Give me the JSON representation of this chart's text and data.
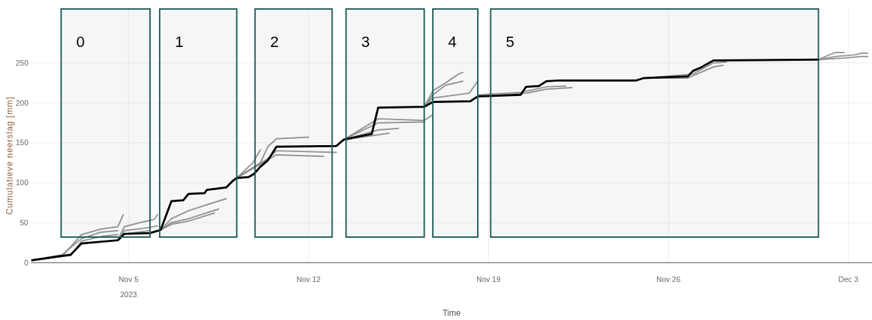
{
  "chart_data": {
    "type": "line",
    "xlabel": "Time",
    "ylabel": "Cumulatieve neerslag [mm]",
    "xlim": [
      "2023-11-01T05:00",
      "2023-12-03T22:00"
    ],
    "ylim": [
      0,
      320
    ],
    "xticks": [
      {
        "value": "2023-11-05",
        "label": "Nov 5\n2023"
      },
      {
        "value": "2023-11-12",
        "label": "Nov 12"
      },
      {
        "value": "2023-11-19",
        "label": "Nov 19"
      },
      {
        "value": "2023-11-26",
        "label": "Nov 26"
      },
      {
        "value": "2023-12-03",
        "label": "Dec 3"
      }
    ],
    "yticks": [
      0,
      50,
      100,
      150,
      200,
      250
    ],
    "grid": true,
    "bands": [
      {
        "axis": "x",
        "from": "2023-11-02T09:00",
        "to": "2023-11-05T20:00",
        "label": "0",
        "color": "#1f5a57"
      },
      {
        "axis": "x",
        "from": "2023-11-06T05:00",
        "to": "2023-11-09T05:00",
        "label": "1",
        "color": "#1f5a57"
      },
      {
        "axis": "x",
        "from": "2023-11-09T22:00",
        "to": "2023-11-12T22:00",
        "label": "2",
        "color": "#1f5a57"
      },
      {
        "axis": "x",
        "from": "2023-11-13T11:00",
        "to": "2023-11-16T12:00",
        "label": "3",
        "color": "#1f5a57"
      },
      {
        "axis": "x",
        "from": "2023-11-16T20:00",
        "to": "2023-11-18T14:00",
        "label": "4",
        "color": "#1f5a57"
      },
      {
        "axis": "x",
        "from": "2023-11-19T02:00",
        "to": "2023-12-01T20:00",
        "label": "5",
        "color": "#1f5a57"
      }
    ],
    "series": [
      {
        "color": "#8c8c8c",
        "x": [
          "2023-11-01T06:00",
          "2023-11-02T10:00",
          "2023-11-03T04:00",
          "2023-11-03T22:00",
          "2023-11-04T14:00",
          "2023-11-04T19:00"
        ],
        "values": [
          3,
          8,
          35,
          42,
          45,
          60
        ]
      },
      {
        "color": "#8c8c8c",
        "x": [
          "2023-11-01T06:00",
          "2023-11-02T10:00",
          "2023-11-03T04:00",
          "2023-11-03T22:00",
          "2023-11-04T14:00"
        ],
        "values": [
          3,
          10,
          30,
          38,
          40
        ]
      },
      {
        "color": "#8c8c8c",
        "x": [
          "2023-11-01T06:00",
          "2023-11-02T18:00",
          "2023-11-03T04:00",
          "2023-11-04T00:00",
          "2023-11-04T14:00"
        ],
        "values": [
          3,
          9,
          27,
          33,
          35
        ]
      },
      {
        "color": "#8c8c8c",
        "x": [
          "2023-11-04T14:00",
          "2023-11-04T20:00",
          "2023-11-05T10:00",
          "2023-11-06T00:00",
          "2023-11-06T03:00"
        ],
        "values": [
          28,
          45,
          50,
          54,
          60
        ]
      },
      {
        "color": "#8c8c8c",
        "x": [
          "2023-11-04T14:00",
          "2023-11-04T20:00",
          "2023-11-05T20:00",
          "2023-11-06T03:00"
        ],
        "values": [
          28,
          40,
          44,
          46
        ]
      },
      {
        "color": "#8c8c8c",
        "x": [
          "2023-11-04T14:00",
          "2023-11-04T20:00",
          "2023-11-05T20:00"
        ],
        "values": [
          28,
          36,
          40
        ]
      },
      {
        "color": "#8c8c8c",
        "x": [
          "2023-11-06T06:00",
          "2023-11-06T16:00",
          "2023-11-07T08:00",
          "2023-11-08T00:00",
          "2023-11-08T19:00"
        ],
        "values": [
          41,
          55,
          65,
          72,
          80
        ]
      },
      {
        "color": "#8c8c8c",
        "x": [
          "2023-11-06T06:00",
          "2023-11-06T16:00",
          "2023-11-07T08:00",
          "2023-11-08T12:00"
        ],
        "values": [
          41,
          50,
          55,
          67
        ]
      },
      {
        "color": "#8c8c8c",
        "x": [
          "2023-11-06T06:00",
          "2023-11-06T16:00",
          "2023-11-07T08:00",
          "2023-11-08T08:00"
        ],
        "values": [
          41,
          48,
          52,
          62
        ]
      },
      {
        "color": "#8c8c8c",
        "x": [
          "2023-11-09T05:00",
          "2023-11-09T20:00",
          "2023-11-10T03:00"
        ],
        "values": [
          106,
          125,
          141
        ]
      },
      {
        "color": "#8c8c8c",
        "x": [
          "2023-11-09T05:00",
          "2023-11-10T03:00",
          "2023-11-10T10:00",
          "2023-11-10T18:00",
          "2023-11-12T00:00"
        ],
        "values": [
          106,
          125,
          145,
          155,
          157
        ]
      },
      {
        "color": "#8c8c8c",
        "x": [
          "2023-11-09T05:00",
          "2023-11-10T10:00",
          "2023-11-10T18:00",
          "2023-11-13T02:00"
        ],
        "values": [
          106,
          130,
          140,
          138
        ]
      },
      {
        "color": "#8c8c8c",
        "x": [
          "2023-11-09T05:00",
          "2023-11-10T18:00",
          "2023-11-12T14:00"
        ],
        "values": [
          106,
          135,
          133
        ]
      },
      {
        "color": "#8c8c8c",
        "x": [
          "2023-11-13T09:00",
          "2023-11-14T17:00",
          "2023-11-16T12:00",
          "2023-11-16T20:00"
        ],
        "values": [
          154,
          180,
          178,
          185
        ]
      },
      {
        "color": "#8c8c8c",
        "x": [
          "2023-11-13T09:00",
          "2023-11-14T17:00",
          "2023-11-16T12:00"
        ],
        "values": [
          154,
          175,
          176
        ]
      },
      {
        "color": "#8c8c8c",
        "x": [
          "2023-11-13T09:00",
          "2023-11-14T17:00",
          "2023-11-15T12:00"
        ],
        "values": [
          154,
          166,
          168
        ]
      },
      {
        "color": "#8c8c8c",
        "x": [
          "2023-11-13T09:00",
          "2023-11-14T17:00",
          "2023-11-15T03:00"
        ],
        "values": [
          154,
          160,
          162
        ]
      },
      {
        "color": "#8c8c8c",
        "x": [
          "2023-11-16T12:00",
          "2023-11-16T20:00",
          "2023-11-17T08:00",
          "2023-11-17T20:00",
          "2023-11-18T00:00"
        ],
        "values": [
          195,
          215,
          225,
          236,
          238
        ]
      },
      {
        "color": "#8c8c8c",
        "x": [
          "2023-11-16T12:00",
          "2023-11-16T20:00",
          "2023-11-17T08:00",
          "2023-11-18T00:00"
        ],
        "values": [
          195,
          210,
          222,
          227
        ]
      },
      {
        "color": "#8c8c8c",
        "x": [
          "2023-11-16T12:00",
          "2023-11-16T20:00",
          "2023-11-18T06:00",
          "2023-11-18T14:00"
        ],
        "values": [
          195,
          206,
          212,
          227
        ]
      },
      {
        "color": "#8c8c8c",
        "x": [
          "2023-11-18T14:00",
          "2023-11-20T11:00",
          "2023-11-21T06:00",
          "2023-11-22T06:00"
        ],
        "values": [
          208,
          212,
          217,
          219
        ]
      },
      {
        "color": "#8c8c8c",
        "x": [
          "2023-11-18T14:00",
          "2023-11-20T06:00",
          "2023-11-21T06:00",
          "2023-11-22T00:00"
        ],
        "values": [
          210,
          213,
          220,
          221
        ]
      },
      {
        "color": "#8c8c8c",
        "x": [
          "2023-11-25T01:00",
          "2023-11-26T18:00",
          "2023-11-27T06:00",
          "2023-11-27T18:00",
          "2023-11-28T03:00"
        ],
        "values": [
          231,
          231,
          238,
          245,
          247
        ]
      },
      {
        "color": "#8c8c8c",
        "x": [
          "2023-11-25T01:00",
          "2023-11-26T23:00",
          "2023-11-27T18:00",
          "2023-11-28T06:00"
        ],
        "values": [
          231,
          236,
          250,
          251
        ]
      },
      {
        "color": "#8c8c8c",
        "x": [
          "2023-12-01T20:00",
          "2023-12-02T06:00",
          "2023-12-02T12:00",
          "2023-12-02T20:00"
        ],
        "values": [
          254,
          260,
          263,
          263
        ]
      },
      {
        "color": "#8c8c8c",
        "x": [
          "2023-12-01T20:00",
          "2023-12-02T20:00",
          "2023-12-03T12:00",
          "2023-12-03T18:00"
        ],
        "values": [
          254,
          256,
          258,
          258
        ]
      },
      {
        "color": "#8c8c8c",
        "x": [
          "2023-12-01T20:00",
          "2023-12-02T12:00",
          "2023-12-03T06:00",
          "2023-12-03T12:00",
          "2023-12-03T18:00"
        ],
        "values": [
          254,
          258,
          260,
          262,
          262
        ]
      },
      {
        "color": "#000000",
        "x": [
          "2023-11-01T06:00",
          "2023-11-02T18:00",
          "2023-11-03T04:00",
          "2023-11-04T14:00",
          "2023-11-04T20:00",
          "2023-11-05T20:00",
          "2023-11-06T06:00",
          "2023-11-06T16:00",
          "2023-11-07T03:00",
          "2023-11-07T08:00",
          "2023-11-07T23:00",
          "2023-11-08T01:00",
          "2023-11-08T19:00",
          "2023-11-09T01:00",
          "2023-11-09T05:00",
          "2023-11-09T16:00",
          "2023-11-09T21:00",
          "2023-11-10T03:00",
          "2023-11-10T10:00",
          "2023-11-10T18:00",
          "2023-11-13T02:00",
          "2023-11-13T09:00",
          "2023-11-14T11:00",
          "2023-11-14T17:00",
          "2023-11-16T12:00",
          "2023-11-16T20:00",
          "2023-11-18T07:00",
          "2023-11-18T14:00",
          "2023-11-20T06:00",
          "2023-11-20T11:00",
          "2023-11-20T23:00",
          "2023-11-21T06:00",
          "2023-11-21T18:00",
          "2023-11-24T18:00",
          "2023-11-25T01:00",
          "2023-11-26T18:00",
          "2023-11-26T23:00",
          "2023-11-27T06:00",
          "2023-11-27T18:00",
          "2023-12-01T20:00"
        ],
        "values": [
          3,
          10,
          24,
          28,
          36,
          37,
          41,
          77,
          78,
          86,
          87,
          91,
          94,
          102,
          106,
          107,
          111,
          120,
          128,
          145,
          146,
          154,
          161,
          194,
          195,
          201,
          202,
          208,
          210,
          220,
          221,
          227,
          228,
          228,
          231,
          233,
          240,
          244,
          253,
          254
        ]
      }
    ]
  }
}
